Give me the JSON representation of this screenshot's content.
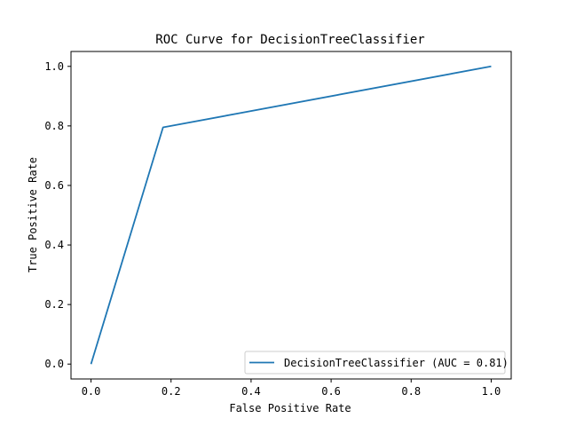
{
  "chart_data": {
    "type": "line",
    "title": "ROC Curve for DecisionTreeClassifier",
    "xlabel": "False Positive Rate",
    "ylabel": "True Positive Rate",
    "xlim": [
      -0.05,
      1.05
    ],
    "ylim": [
      -0.05,
      1.05
    ],
    "x_ticks": [
      0.0,
      0.2,
      0.4,
      0.6,
      0.8,
      1.0
    ],
    "x_tick_labels": [
      "0.0",
      "0.2",
      "0.4",
      "0.6",
      "0.8",
      "1.0"
    ],
    "y_ticks": [
      0.0,
      0.2,
      0.4,
      0.6,
      0.8,
      1.0
    ],
    "y_tick_labels": [
      "0.0",
      "0.2",
      "0.4",
      "0.6",
      "0.8",
      "1.0"
    ],
    "grid": false,
    "legend_position": "lower-right",
    "series": [
      {
        "name": "DecisionTreeClassifier (AUC = 0.81)",
        "color": "#1f77b4",
        "x": [
          0.0,
          0.18,
          1.0
        ],
        "y": [
          0.0,
          0.795,
          1.0
        ]
      }
    ]
  }
}
